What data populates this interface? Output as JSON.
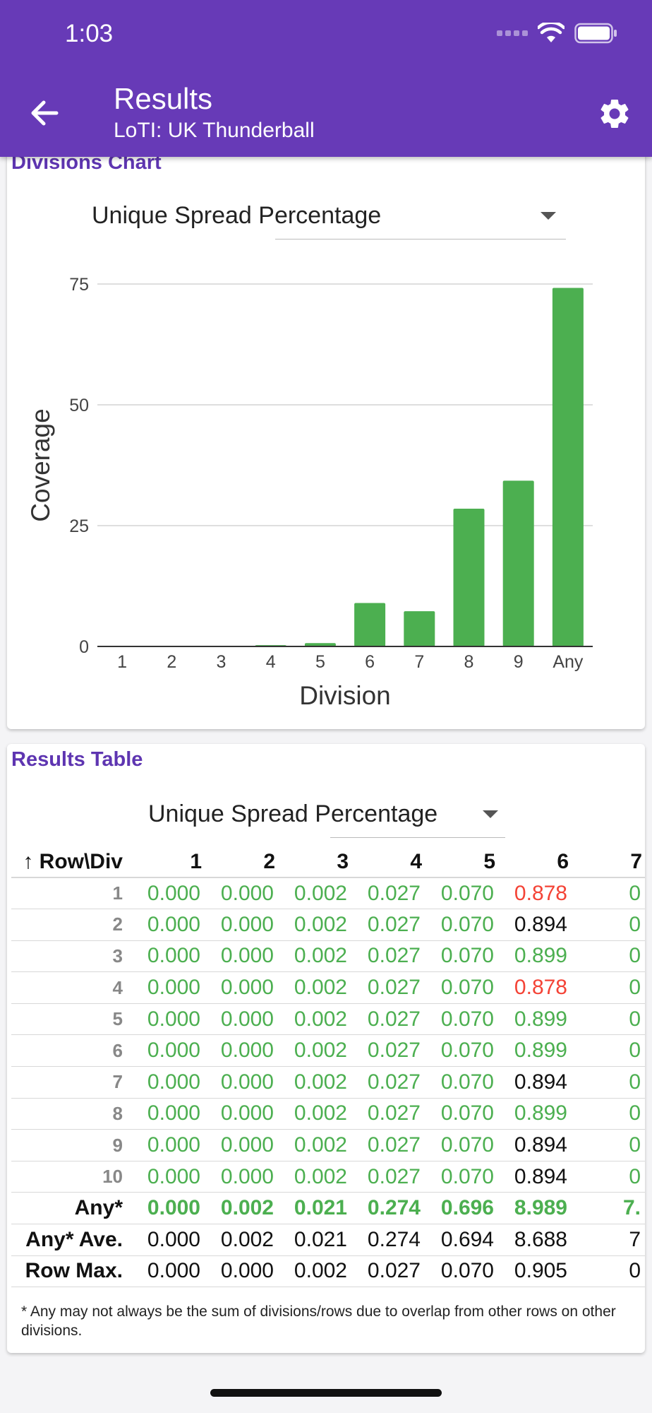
{
  "status_bar": {
    "time": "1:03"
  },
  "header": {
    "title": "Results",
    "subtitle": "LoTI: UK Thunderball"
  },
  "chart_card": {
    "title": "Divisions Chart",
    "dropdown_value": "Unique Spread Percentage"
  },
  "chart_data": {
    "type": "bar",
    "categories": [
      "1",
      "2",
      "3",
      "4",
      "5",
      "6",
      "7",
      "8",
      "9",
      "Any"
    ],
    "values": [
      0.0,
      0.002,
      0.021,
      0.274,
      0.696,
      8.989,
      7.3,
      28.5,
      34.3,
      74.2
    ],
    "xlabel": "Division",
    "ylabel": "Coverage",
    "ylim": [
      0,
      75
    ],
    "yticks": [
      "0",
      "25",
      "50",
      "75"
    ],
    "grid": true,
    "bar_color": "#4caf50"
  },
  "table_card": {
    "title": "Results Table",
    "dropdown_value": "Unique Spread Percentage",
    "columns": [
      "↑ Row\\Div",
      "1",
      "2",
      "3",
      "4",
      "5",
      "6",
      "7"
    ],
    "rows": [
      {
        "label": "1",
        "cells": [
          [
            "0.000",
            "g"
          ],
          [
            "0.000",
            "g"
          ],
          [
            "0.002",
            "g"
          ],
          [
            "0.027",
            "g"
          ],
          [
            "0.070",
            "g"
          ],
          [
            "0.878",
            "r"
          ],
          [
            "0",
            "g"
          ]
        ]
      },
      {
        "label": "2",
        "cells": [
          [
            "0.000",
            "g"
          ],
          [
            "0.000",
            "g"
          ],
          [
            "0.002",
            "g"
          ],
          [
            "0.027",
            "g"
          ],
          [
            "0.070",
            "g"
          ],
          [
            "0.894",
            "k"
          ],
          [
            "0",
            "g"
          ]
        ]
      },
      {
        "label": "3",
        "cells": [
          [
            "0.000",
            "g"
          ],
          [
            "0.000",
            "g"
          ],
          [
            "0.002",
            "g"
          ],
          [
            "0.027",
            "g"
          ],
          [
            "0.070",
            "g"
          ],
          [
            "0.899",
            "g"
          ],
          [
            "0",
            "g"
          ]
        ]
      },
      {
        "label": "4",
        "cells": [
          [
            "0.000",
            "g"
          ],
          [
            "0.000",
            "g"
          ],
          [
            "0.002",
            "g"
          ],
          [
            "0.027",
            "g"
          ],
          [
            "0.070",
            "g"
          ],
          [
            "0.878",
            "r"
          ],
          [
            "0",
            "g"
          ]
        ]
      },
      {
        "label": "5",
        "cells": [
          [
            "0.000",
            "g"
          ],
          [
            "0.000",
            "g"
          ],
          [
            "0.002",
            "g"
          ],
          [
            "0.027",
            "g"
          ],
          [
            "0.070",
            "g"
          ],
          [
            "0.899",
            "g"
          ],
          [
            "0",
            "g"
          ]
        ]
      },
      {
        "label": "6",
        "cells": [
          [
            "0.000",
            "g"
          ],
          [
            "0.000",
            "g"
          ],
          [
            "0.002",
            "g"
          ],
          [
            "0.027",
            "g"
          ],
          [
            "0.070",
            "g"
          ],
          [
            "0.899",
            "g"
          ],
          [
            "0",
            "g"
          ]
        ]
      },
      {
        "label": "7",
        "cells": [
          [
            "0.000",
            "g"
          ],
          [
            "0.000",
            "g"
          ],
          [
            "0.002",
            "g"
          ],
          [
            "0.027",
            "g"
          ],
          [
            "0.070",
            "g"
          ],
          [
            "0.894",
            "k"
          ],
          [
            "0",
            "g"
          ]
        ]
      },
      {
        "label": "8",
        "cells": [
          [
            "0.000",
            "g"
          ],
          [
            "0.000",
            "g"
          ],
          [
            "0.002",
            "g"
          ],
          [
            "0.027",
            "g"
          ],
          [
            "0.070",
            "g"
          ],
          [
            "0.899",
            "g"
          ],
          [
            "0",
            "g"
          ]
        ]
      },
      {
        "label": "9",
        "cells": [
          [
            "0.000",
            "g"
          ],
          [
            "0.000",
            "g"
          ],
          [
            "0.002",
            "g"
          ],
          [
            "0.027",
            "g"
          ],
          [
            "0.070",
            "g"
          ],
          [
            "0.894",
            "k"
          ],
          [
            "0",
            "g"
          ]
        ]
      },
      {
        "label": "10",
        "cells": [
          [
            "0.000",
            "g"
          ],
          [
            "0.000",
            "g"
          ],
          [
            "0.002",
            "g"
          ],
          [
            "0.027",
            "g"
          ],
          [
            "0.070",
            "g"
          ],
          [
            "0.894",
            "k"
          ],
          [
            "0",
            "g"
          ]
        ]
      }
    ],
    "summary_rows": [
      {
        "label": "Any*",
        "bold": true,
        "cells": [
          [
            "0.000",
            "g"
          ],
          [
            "0.002",
            "g"
          ],
          [
            "0.021",
            "g"
          ],
          [
            "0.274",
            "g"
          ],
          [
            "0.696",
            "g"
          ],
          [
            "8.989",
            "g"
          ],
          [
            "7.",
            "g"
          ]
        ]
      },
      {
        "label": "Any* Ave.",
        "bold": false,
        "cells": [
          [
            "0.000",
            "k"
          ],
          [
            "0.002",
            "k"
          ],
          [
            "0.021",
            "k"
          ],
          [
            "0.274",
            "k"
          ],
          [
            "0.694",
            "k"
          ],
          [
            "8.688",
            "k"
          ],
          [
            "7",
            "k"
          ]
        ]
      },
      {
        "label": "Row Max.",
        "bold": false,
        "cells": [
          [
            "0.000",
            "k"
          ],
          [
            "0.000",
            "k"
          ],
          [
            "0.002",
            "k"
          ],
          [
            "0.027",
            "k"
          ],
          [
            "0.070",
            "k"
          ],
          [
            "0.905",
            "k"
          ],
          [
            "0",
            "k"
          ]
        ]
      }
    ],
    "footnote": "* Any may not always be the sum of divisions/rows due to overlap from other rows on other divisions."
  },
  "colors": {
    "primary": "#673ab7",
    "accent": "#5e35b1",
    "good": "#4caf50",
    "bad": "#f44336"
  }
}
